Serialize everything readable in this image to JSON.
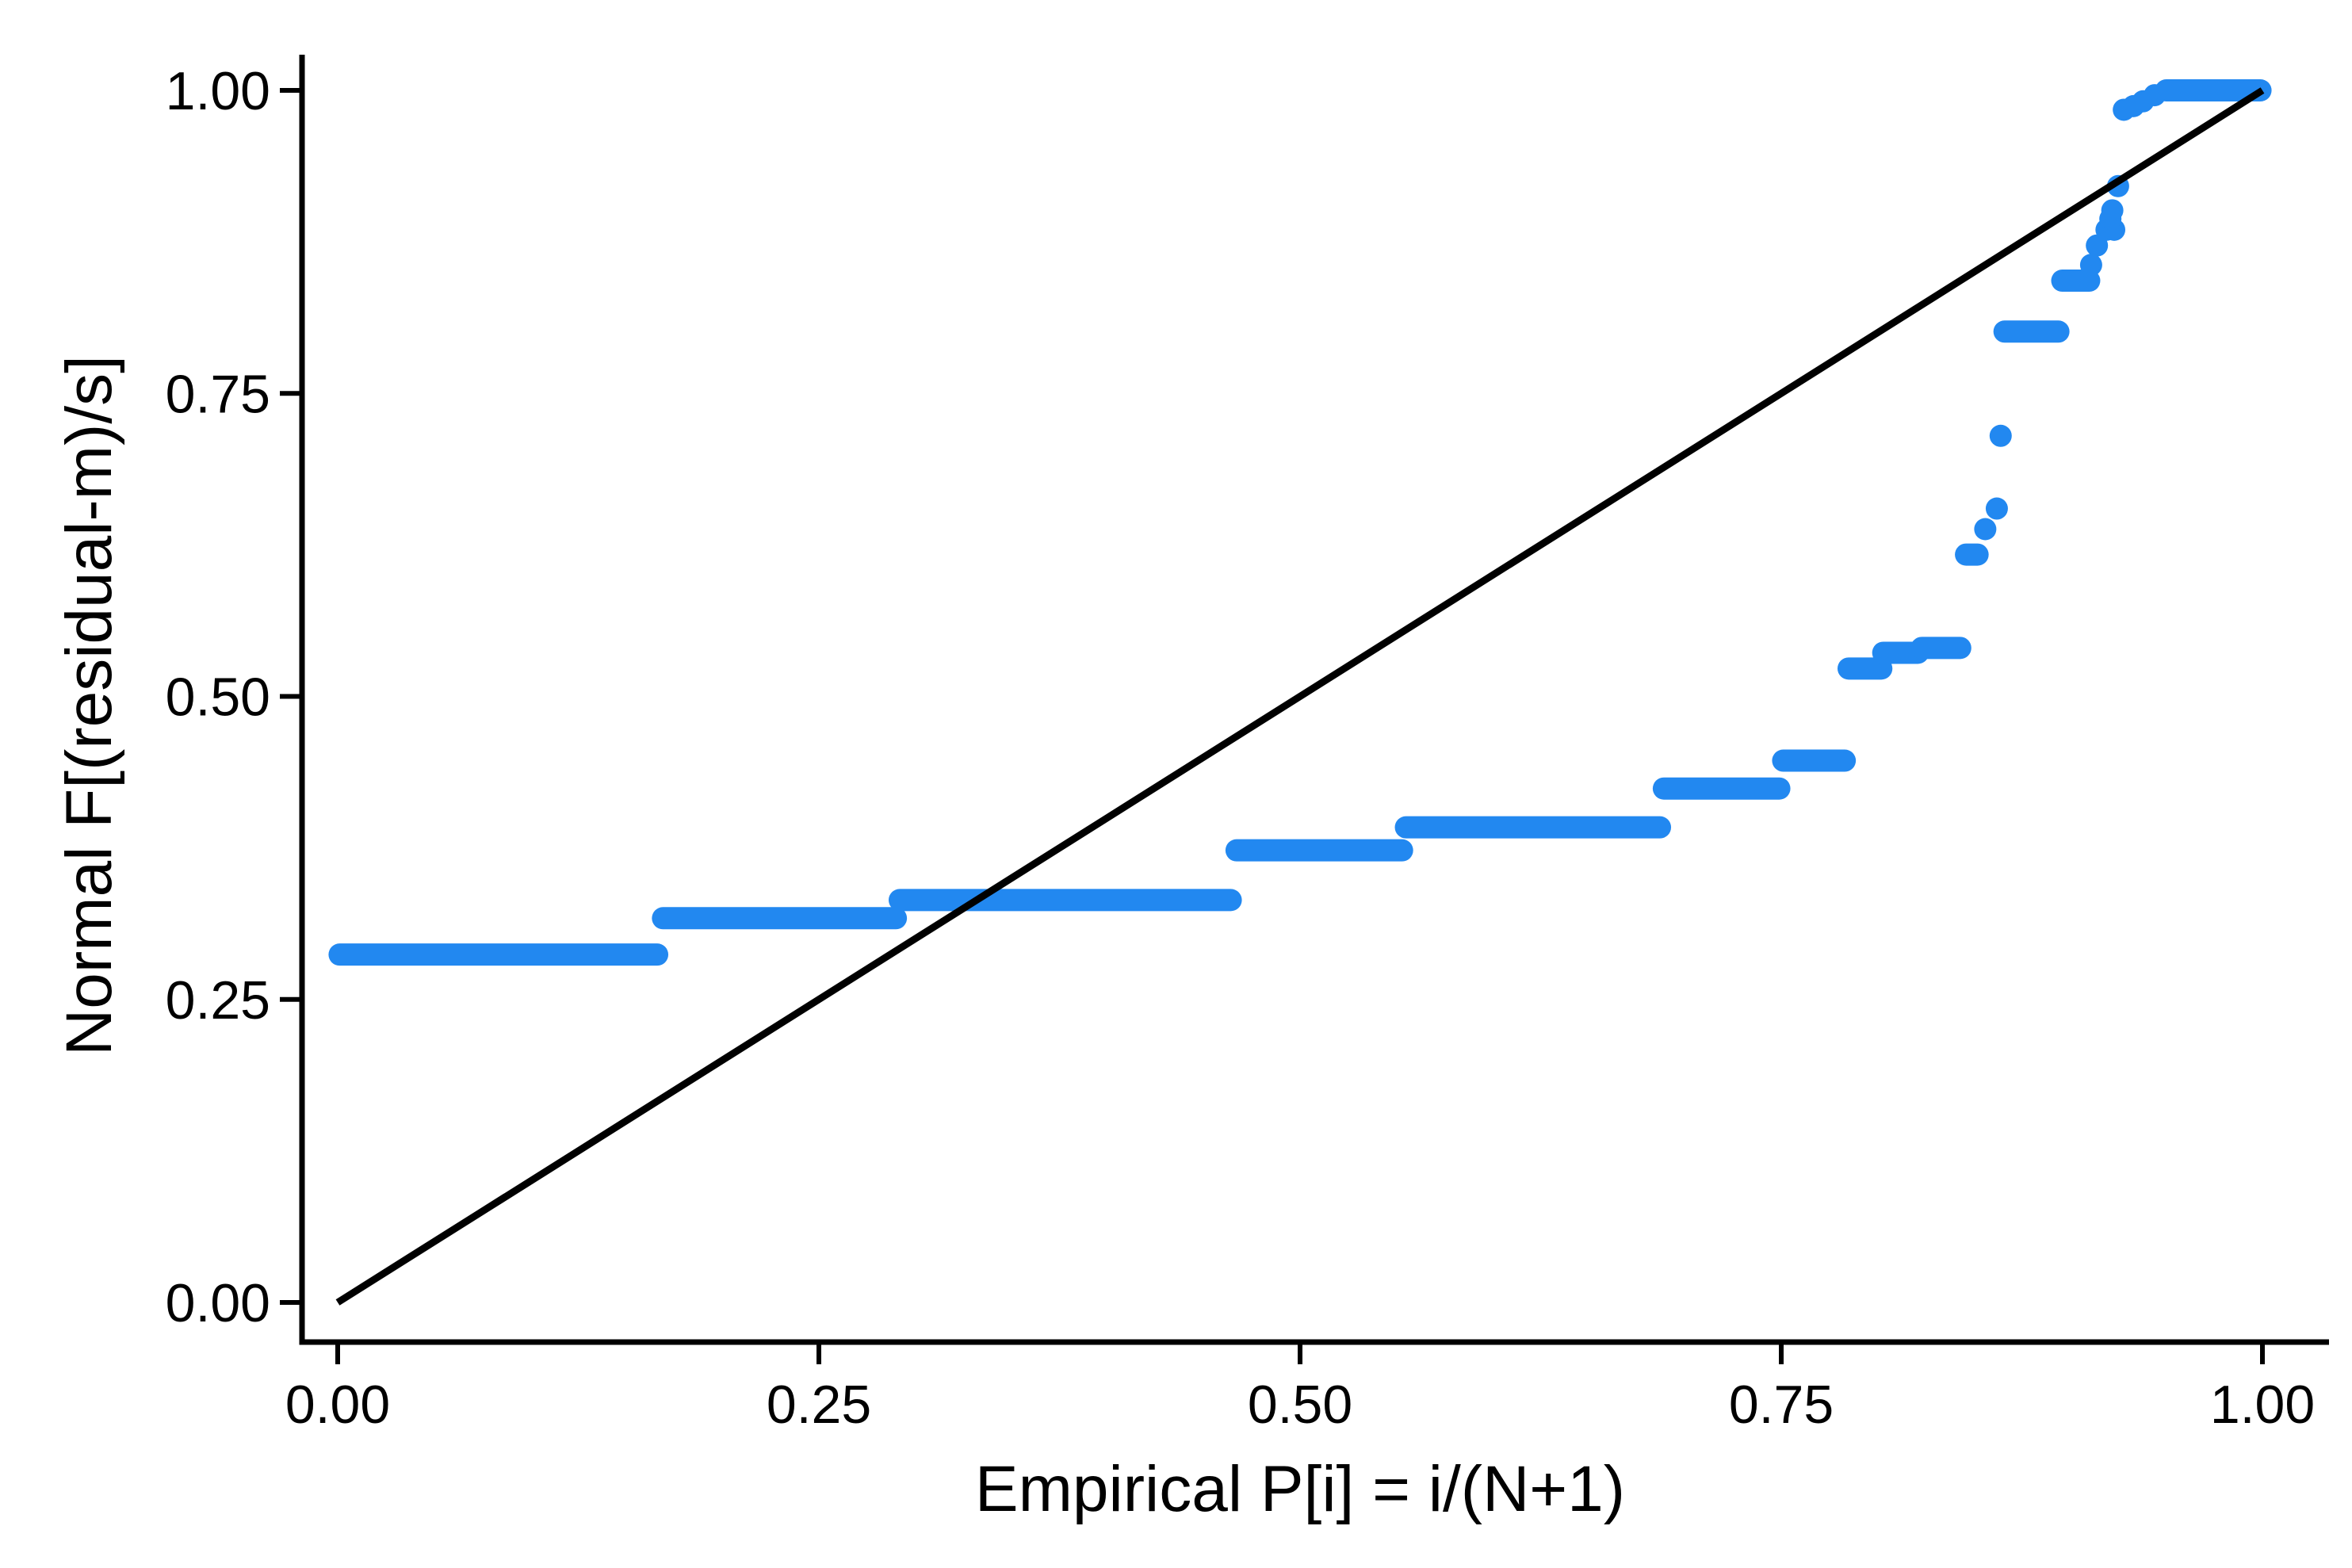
{
  "figure": {
    "background": "#ffffff"
  },
  "colors": {
    "marker": "#2288f0",
    "reference_line": "#000000",
    "axis": "#000000",
    "text": "#000000",
    "background": "#ffffff"
  },
  "chart_data": {
    "type": "scatter",
    "subtype": "probability-probability-step-plot",
    "title": "",
    "xlabel": "Empirical P[i] = i/(N+1)",
    "ylabel": "Normal F[(residual-m)/s]",
    "xlim": [
      0,
      1
    ],
    "ylim": [
      0,
      1
    ],
    "grid": false,
    "legend": "none",
    "x_ticks": [
      {
        "v": 0.0,
        "label": "0.00"
      },
      {
        "v": 0.25,
        "label": "0.25"
      },
      {
        "v": 0.5,
        "label": "0.50"
      },
      {
        "v": 0.75,
        "label": "0.75"
      },
      {
        "v": 1.0,
        "label": "1.00"
      }
    ],
    "y_ticks": [
      {
        "v": 0.0,
        "label": "0.00"
      },
      {
        "v": 0.25,
        "label": "0.25"
      },
      {
        "v": 0.5,
        "label": "0.50"
      },
      {
        "v": 0.75,
        "label": "0.75"
      },
      {
        "v": 1.0,
        "label": "1.00"
      }
    ],
    "reference_line": {
      "from": [
        0,
        0
      ],
      "to": [
        1,
        1
      ]
    },
    "series": [
      {
        "name": "Normal F[(residual-m)/s]",
        "marker": "circle",
        "runs": [
          {
            "y": 0.287,
            "x1": 0.001,
            "x2": 0.166
          },
          {
            "y": 0.317,
            "x1": 0.169,
            "x2": 0.29
          },
          {
            "y": 0.332,
            "x1": 0.292,
            "x2": 0.464
          },
          {
            "y": 0.373,
            "x1": 0.467,
            "x2": 0.553
          },
          {
            "y": 0.392,
            "x1": 0.555,
            "x2": 0.687
          },
          {
            "y": 0.424,
            "x1": 0.689,
            "x2": 0.749
          },
          {
            "y": 0.447,
            "x1": 0.751,
            "x2": 0.783
          },
          {
            "y": 0.523,
            "x1": 0.785,
            "x2": 0.802
          },
          {
            "y": 0.536,
            "x1": 0.803,
            "x2": 0.821
          },
          {
            "y": 0.54,
            "x1": 0.823,
            "x2": 0.843
          },
          {
            "y": 0.617,
            "x1": 0.846,
            "x2": 0.852
          },
          {
            "y": 0.801,
            "x1": 0.866,
            "x2": 0.894
          },
          {
            "y": 0.843,
            "x1": 0.896,
            "x2": 0.91
          },
          {
            "y": 1.0,
            "x1": 0.95,
            "x2": 0.999
          }
        ],
        "points": [
          {
            "x": 0.856,
            "y": 0.638
          },
          {
            "x": 0.862,
            "y": 0.655
          },
          {
            "x": 0.864,
            "y": 0.715
          },
          {
            "x": 0.911,
            "y": 0.856
          },
          {
            "x": 0.914,
            "y": 0.872
          },
          {
            "x": 0.919,
            "y": 0.885
          },
          {
            "x": 0.923,
            "y": 0.885
          },
          {
            "x": 0.921,
            "y": 0.894
          },
          {
            "x": 0.922,
            "y": 0.901
          },
          {
            "x": 0.925,
            "y": 0.921
          },
          {
            "x": 0.928,
            "y": 0.984
          },
          {
            "x": 0.933,
            "y": 0.987
          },
          {
            "x": 0.938,
            "y": 0.991
          },
          {
            "x": 0.944,
            "y": 0.996
          }
        ]
      }
    ]
  }
}
